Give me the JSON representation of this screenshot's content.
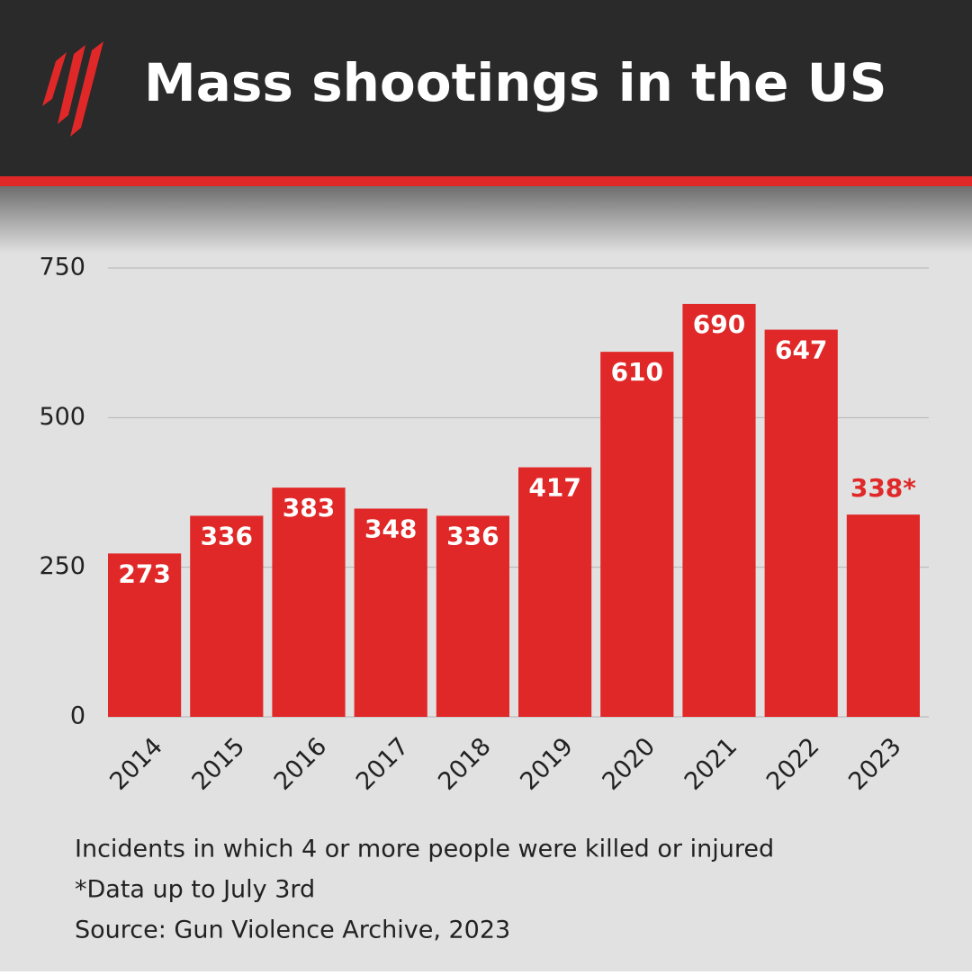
{
  "chart_data": {
    "type": "bar",
    "title": "Mass shootings in the US",
    "categories": [
      "2014",
      "2015",
      "2016",
      "2017",
      "2018",
      "2019",
      "2020",
      "2021",
      "2022",
      "2023"
    ],
    "values": [
      273,
      336,
      383,
      348,
      336,
      417,
      610,
      690,
      647,
      338
    ],
    "value_labels": [
      "273",
      "336",
      "383",
      "348",
      "336",
      "417",
      "610",
      "690",
      "647",
      "338*"
    ],
    "color": "#e02828",
    "ylim": [
      0,
      750
    ],
    "yticks": [
      0,
      250,
      500,
      750
    ],
    "grid": true,
    "notes": [
      "Incidents in which 4 or more people were killed or injured",
      "*Data up to July 3rd",
      "Source: Gun Violence Archive, 2023"
    ]
  }
}
